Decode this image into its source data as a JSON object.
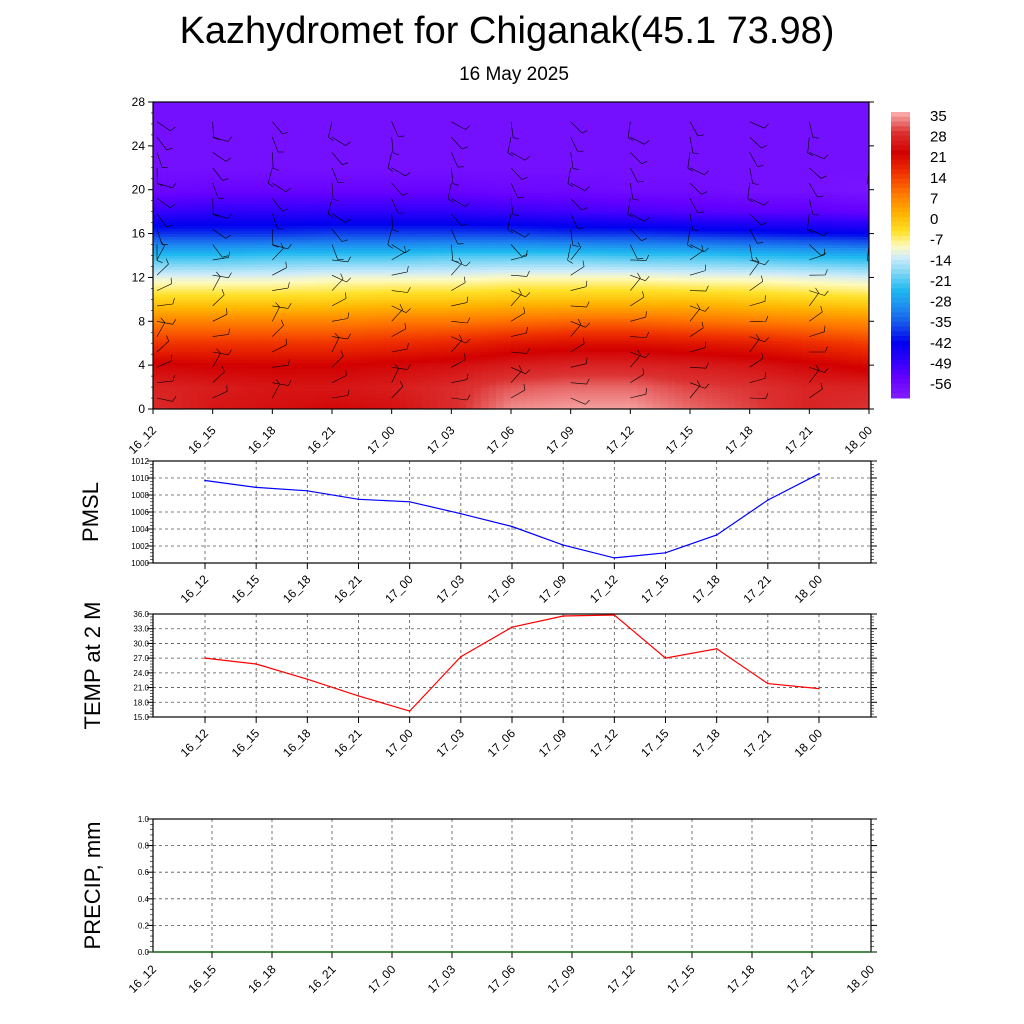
{
  "header": {
    "title": "Kazhydromet for Chiganak(45.1 73.98)",
    "subtitle": "16 May 2025"
  },
  "chart_data": [
    {
      "type": "heatmap",
      "title": "",
      "time_labels": [
        "16_12",
        "16_15",
        "16_18",
        "16_21",
        "17_00",
        "17_03",
        "17_06",
        "17_09",
        "17_12",
        "17_15",
        "17_18",
        "17_21",
        "18_00"
      ],
      "y_ticks": [
        "0",
        "4",
        "8",
        "12",
        "16",
        "20",
        "24",
        "28"
      ],
      "ylim": [
        0,
        28
      ],
      "levels": [
        0,
        2,
        4,
        6,
        8,
        10,
        12,
        14,
        16,
        18,
        20,
        22,
        24,
        26,
        28
      ],
      "values": [
        [
          27,
          24,
          23,
          22,
          23,
          27,
          33,
          34,
          34,
          31,
          29,
          26,
          28
        ],
        [
          26,
          25,
          24,
          24,
          25,
          27,
          30,
          31,
          31,
          29,
          28,
          26,
          26
        ],
        [
          22,
          21,
          21,
          21,
          22,
          23,
          25,
          26,
          26,
          25,
          24,
          22,
          20
        ],
        [
          14,
          14,
          14,
          14,
          15,
          16,
          18,
          19,
          19,
          18,
          17,
          15,
          13
        ],
        [
          6,
          6,
          6,
          6,
          7,
          7,
          8,
          9,
          9,
          8,
          7,
          6,
          5
        ],
        [
          -4,
          -4,
          -4,
          -4,
          -3,
          -3,
          -2,
          -2,
          -2,
          -2,
          -3,
          -4,
          -5
        ],
        [
          -13,
          -13,
          -13,
          -12,
          -12,
          -12,
          -11,
          -11,
          -11,
          -12,
          -12,
          -13,
          -14
        ],
        [
          -25,
          -25,
          -24,
          -24,
          -24,
          -23,
          -23,
          -23,
          -24,
          -24,
          -25,
          -26,
          -27
        ],
        [
          -40,
          -40,
          -40,
          -39,
          -39,
          -39,
          -39,
          -40,
          -40,
          -41,
          -42,
          -43,
          -44
        ],
        [
          -51,
          -50,
          -50,
          -50,
          -50,
          -50,
          -51,
          -52,
          -53,
          -54,
          -55,
          -55,
          -56
        ],
        [
          -58,
          -57,
          -57,
          -57,
          -57,
          -57,
          -58,
          -58,
          -59,
          -59,
          -60,
          -60,
          -61
        ],
        [
          -60,
          -60,
          -60,
          -60,
          -60,
          -60,
          -60,
          -60,
          -60,
          -60,
          -60,
          -60,
          -60
        ],
        [
          -60,
          -60,
          -60,
          -60,
          -60,
          -60,
          -60,
          -60,
          -60,
          -60,
          -60,
          -60,
          -60
        ],
        [
          -60,
          -60,
          -60,
          -60,
          -60,
          -60,
          -60,
          -60,
          -60,
          -60,
          -60,
          -60,
          -60
        ],
        [
          -60,
          -60,
          -60,
          -60,
          -60,
          -60,
          -60,
          -60,
          -60,
          -60,
          -60,
          -60,
          -60
        ]
      ],
      "colorbar_labels": [
        "35",
        "28",
        "21",
        "14",
        "7",
        "0",
        "-7",
        "-14",
        "-21",
        "-28",
        "-35",
        "-42",
        "-49",
        "-56"
      ],
      "colorbar_range": [
        -63,
        35
      ],
      "wind_barbs": true
    },
    {
      "type": "line",
      "ylabel": "PMSL",
      "x": [
        "16_12",
        "16_15",
        "16_18",
        "16_21",
        "17_00",
        "17_03",
        "17_06",
        "17_09",
        "17_12",
        "17_15",
        "17_18",
        "17_21",
        "18_00"
      ],
      "series": [
        {
          "values": [
            1009.7,
            1008.9,
            1008.5,
            1007.5,
            1007.2,
            1005.8,
            1004.3,
            1002.1,
            1000.6,
            1001.2,
            1003.3,
            1007.4,
            1010.5
          ]
        }
      ],
      "y_ticks": [
        "1000",
        "1002",
        "1004",
        "1006",
        "1008",
        "1010",
        "1012"
      ],
      "ylim": [
        1000,
        1012
      ],
      "color": "#0000ff",
      "grid": true
    },
    {
      "type": "line",
      "ylabel": "TEMP at 2 M",
      "x": [
        "16_12",
        "16_15",
        "16_18",
        "16_21",
        "17_00",
        "17_03",
        "17_06",
        "17_09",
        "17_12",
        "17_15",
        "17_18",
        "17_21",
        "18_00"
      ],
      "series": [
        {
          "values": [
            27.0,
            25.8,
            22.7,
            19.3,
            16.2,
            27.3,
            33.3,
            35.6,
            35.8,
            27.0,
            28.9,
            21.8,
            20.8
          ]
        }
      ],
      "y_ticks": [
        "15.0",
        "18.0",
        "21.0",
        "24.0",
        "27.0",
        "30.0",
        "33.0",
        "36.0"
      ],
      "ylim": [
        15,
        36
      ],
      "color": "#ff0000",
      "grid": true
    },
    {
      "type": "line",
      "ylabel": "PRECIP, mm",
      "x": [
        "16_12",
        "16_15",
        "16_18",
        "16_21",
        "17_00",
        "17_03",
        "17_06",
        "17_09",
        "17_12",
        "17_15",
        "17_18",
        "17_21",
        "18_00"
      ],
      "series": [
        {
          "values": [
            0,
            0,
            0,
            0,
            0,
            0,
            0,
            0,
            0,
            0,
            0,
            0,
            0
          ]
        }
      ],
      "y_ticks": [
        "0.0",
        "0.2",
        "0.4",
        "0.6",
        "0.8",
        "1.0"
      ],
      "ylim": [
        0,
        1
      ],
      "color": "#006400",
      "grid": true
    }
  ]
}
